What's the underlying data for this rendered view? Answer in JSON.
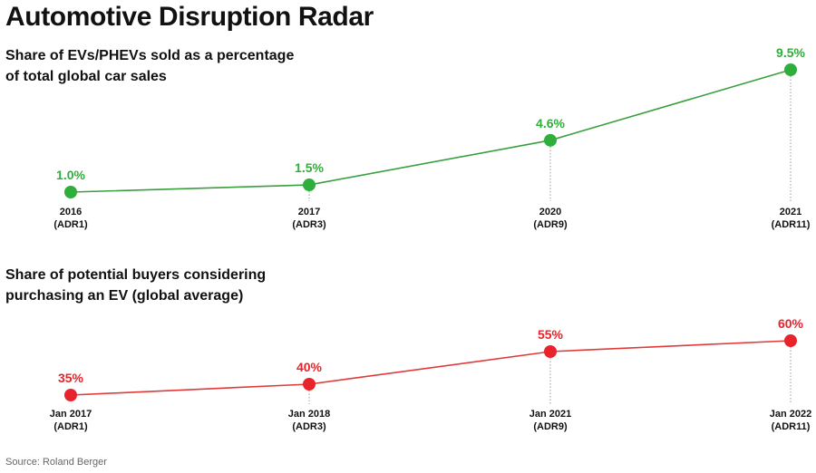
{
  "title": "Automotive Disruption Radar",
  "source": "Source: Roland Berger",
  "chart_data": [
    {
      "type": "line",
      "title": "Share of EVs/PHEVs sold as a percentage of total global car sales",
      "categories": [
        [
          "2016",
          "(ADR1)"
        ],
        [
          "2017",
          "(ADR3)"
        ],
        [
          "2020",
          "(ADR9)"
        ],
        [
          "2021",
          "(ADR11)"
        ]
      ],
      "values": [
        1.0,
        1.5,
        4.6,
        9.5
      ],
      "value_labels": [
        "1.0%",
        "1.5%",
        "4.6%",
        "9.5%"
      ],
      "color": "#2fae3b",
      "line_color": "#3a9f3f",
      "ylim": [
        0,
        10
      ]
    },
    {
      "type": "line",
      "title": "Share of potential buyers considering purchasing an EV (global average)",
      "categories": [
        [
          "Jan 2017",
          "(ADR1)"
        ],
        [
          "Jan 2018",
          "(ADR3)"
        ],
        [
          "Jan 2021",
          "(ADR9)"
        ],
        [
          "Jan 2022",
          "(ADR11)"
        ]
      ],
      "values": [
        35,
        40,
        55,
        60
      ],
      "value_labels": [
        "35%",
        "40%",
        "55%",
        "60%"
      ],
      "color": "#e8232b",
      "line_color": "#e03a3a",
      "ylim": [
        0,
        100
      ]
    }
  ]
}
